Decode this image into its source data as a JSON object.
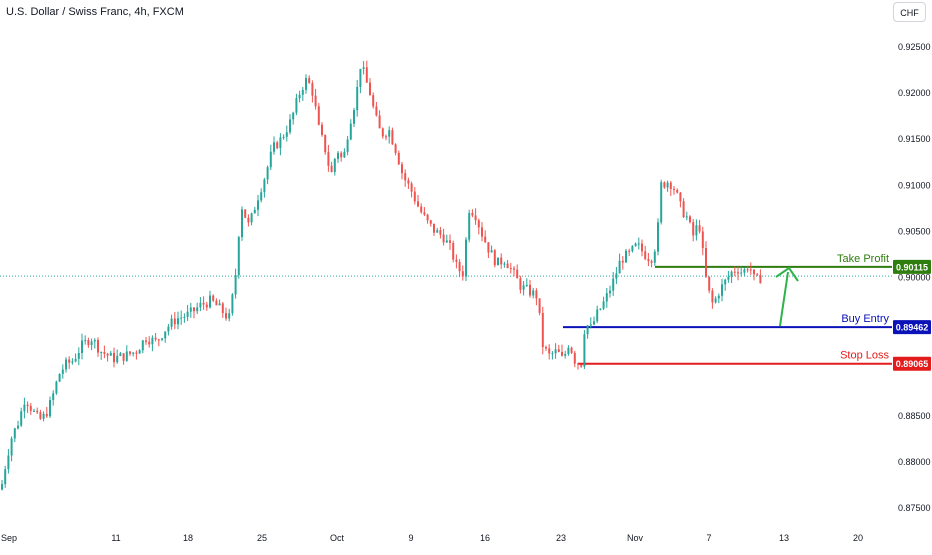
{
  "header": {
    "title": "U.S. Dollar / Swiss Franc, 4h, FXCM",
    "currency_button": "CHF"
  },
  "colors": {
    "up": "#26a69a",
    "down": "#ef5350",
    "take_profit": "#2e7d0e",
    "buy_entry": "#0a12b8",
    "stop_loss": "#e31b1b",
    "current_price_line": "#26a69a",
    "axis_text": "#131722"
  },
  "chart_data": {
    "type": "candlestick",
    "symbol": "USDCHF",
    "timeframe": "4h",
    "x_axis_labels": [
      "Sep",
      "11",
      "18",
      "25",
      "Oct",
      "9",
      "16",
      "23",
      "Nov",
      "7",
      "13",
      "20"
    ],
    "y_axis_labels": [
      "0.92500",
      "0.92000",
      "0.91500",
      "0.91000",
      "0.90500",
      "0.90000",
      "0.88500",
      "0.88000",
      "0.87500"
    ],
    "ylim": [
      0.8738,
      0.9267
    ],
    "grid": false,
    "levels": [
      {
        "name": "Take Profit",
        "value": 0.90115,
        "label": "0.90115"
      },
      {
        "name": "Buy Entry",
        "value": 0.89462,
        "label": "0.89462"
      },
      {
        "name": "Stop Loss",
        "value": 0.89065,
        "label": "0.89065"
      }
    ],
    "current_price": 0.90015,
    "path_points": [
      [
        0,
        0.877
      ],
      [
        5,
        0.88
      ],
      [
        10,
        0.8825
      ],
      [
        18,
        0.8845
      ],
      [
        24,
        0.887
      ],
      [
        32,
        0.8855
      ],
      [
        38,
        0.8845
      ],
      [
        44,
        0.885
      ],
      [
        50,
        0.8865
      ],
      [
        58,
        0.8895
      ],
      [
        64,
        0.8905
      ],
      [
        72,
        0.891
      ],
      [
        80,
        0.8925
      ],
      [
        90,
        0.8935
      ],
      [
        100,
        0.892
      ],
      [
        112,
        0.8912
      ],
      [
        124,
        0.8915
      ],
      [
        135,
        0.892
      ],
      [
        145,
        0.8935
      ],
      [
        155,
        0.893
      ],
      [
        165,
        0.8945
      ],
      [
        175,
        0.8955
      ],
      [
        188,
        0.896
      ],
      [
        200,
        0.897
      ],
      [
        210,
        0.8975
      ],
      [
        220,
        0.8965
      ],
      [
        228,
        0.8955
      ],
      [
        234,
        0.8995
      ],
      [
        240,
        0.908
      ],
      [
        248,
        0.9055
      ],
      [
        256,
        0.9085
      ],
      [
        264,
        0.911
      ],
      [
        272,
        0.914
      ],
      [
        280,
        0.915
      ],
      [
        290,
        0.917
      ],
      [
        300,
        0.9205
      ],
      [
        306,
        0.9215
      ],
      [
        312,
        0.92
      ],
      [
        318,
        0.916
      ],
      [
        324,
        0.914
      ],
      [
        330,
        0.911
      ],
      [
        336,
        0.914
      ],
      [
        342,
        0.9125
      ],
      [
        348,
        0.9165
      ],
      [
        355,
        0.9195
      ],
      [
        360,
        0.9235
      ],
      [
        364,
        0.9215
      ],
      [
        368,
        0.9205
      ],
      [
        374,
        0.9175
      ],
      [
        380,
        0.9155
      ],
      [
        388,
        0.916
      ],
      [
        396,
        0.9135
      ],
      [
        402,
        0.911
      ],
      [
        410,
        0.9095
      ],
      [
        418,
        0.9075
      ],
      [
        426,
        0.906
      ],
      [
        434,
        0.905
      ],
      [
        442,
        0.9045
      ],
      [
        450,
        0.903
      ],
      [
        456,
        0.901
      ],
      [
        462,
        0.9005
      ],
      [
        468,
        0.9075
      ],
      [
        474,
        0.907
      ],
      [
        480,
        0.905
      ],
      [
        488,
        0.903
      ],
      [
        496,
        0.9015
      ],
      [
        504,
        0.902
      ],
      [
        512,
        0.9005
      ],
      [
        520,
        0.899
      ],
      [
        528,
        0.8985
      ],
      [
        536,
        0.898
      ],
      [
        542,
        0.8925
      ],
      [
        548,
        0.8915
      ],
      [
        556,
        0.892
      ],
      [
        562,
        0.891
      ],
      [
        568,
        0.893
      ],
      [
        574,
        0.891
      ],
      [
        580,
        0.8905
      ],
      [
        584,
        0.895
      ],
      [
        590,
        0.8945
      ],
      [
        596,
        0.896
      ],
      [
        604,
        0.8975
      ],
      [
        612,
        0.8995
      ],
      [
        620,
        0.902
      ],
      [
        628,
        0.9025
      ],
      [
        636,
        0.9035
      ],
      [
        644,
        0.9025
      ],
      [
        650,
        0.902
      ],
      [
        656,
        0.904
      ],
      [
        660,
        0.91
      ],
      [
        668,
        0.9105
      ],
      [
        674,
        0.9095
      ],
      [
        680,
        0.9075
      ],
      [
        686,
        0.9065
      ],
      [
        692,
        0.9045
      ],
      [
        698,
        0.906
      ],
      [
        702,
        0.9025
      ],
      [
        706,
        0.899
      ],
      [
        712,
        0.897
      ],
      [
        718,
        0.8985
      ],
      [
        724,
        0.8995
      ],
      [
        730,
        0.9005
      ],
      [
        736,
        0.901
      ],
      [
        742,
        0.9005
      ],
      [
        748,
        0.9015
      ],
      [
        754,
        0.8995
      ],
      [
        760,
        0.9
      ]
    ]
  },
  "annotations": {
    "take_profit_label": "Take Profit",
    "buy_entry_label": "Buy Entry",
    "stop_loss_label": "Stop Loss"
  }
}
